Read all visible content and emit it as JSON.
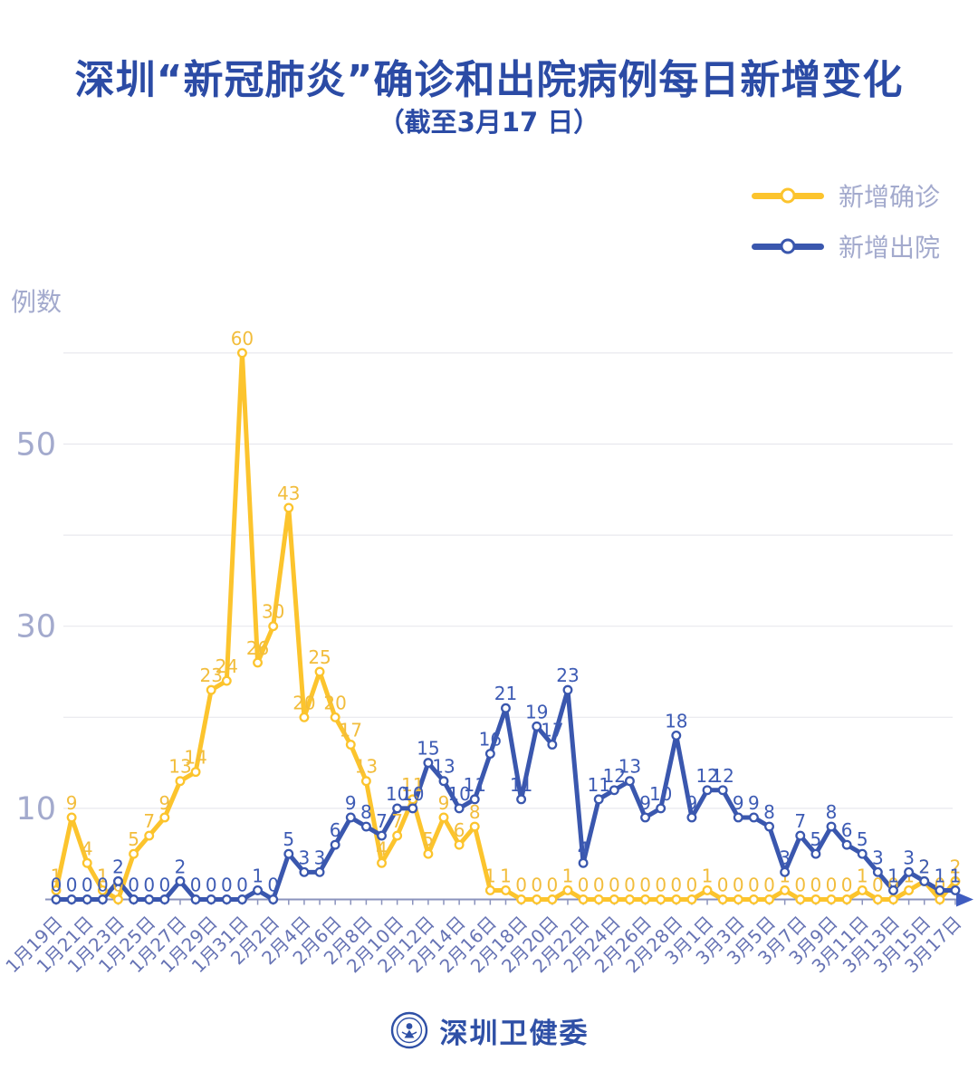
{
  "title": "深圳“新冠肺炎”确诊和出院病例每日新增变化",
  "subtitle": "（截至3月17 日）",
  "y_axis_title": "例数",
  "legend": {
    "items": [
      {
        "label": "新增确诊",
        "color": "#fcc42d"
      },
      {
        "label": "新增出院",
        "color": "#3a57ae"
      }
    ]
  },
  "footer": {
    "brand": "深圳卫健委"
  },
  "colors": {
    "title": "#2b4ba5",
    "legend_text": "#a3aacd",
    "axis_text": "#a3aacd",
    "x_label": "#6673b4",
    "axis_line": "#8b93bd",
    "arrow": "#3f5cc0",
    "gridline": "#e8e8ee",
    "background": "#ffffff"
  },
  "chart_data": {
    "type": "line",
    "title": "深圳“新冠肺炎”确诊和出院病例每日新增变化（截至3月17日）",
    "xlabel": "",
    "ylabel": "例数",
    "y_ticks": [
      10,
      30,
      50
    ],
    "gridlines": [
      10,
      20,
      30,
      40,
      50,
      60
    ],
    "ylim": [
      0,
      62
    ],
    "grid": true,
    "legend_position": "top-right",
    "x_label_every": 2,
    "categories": [
      "1月19日",
      "1月20日",
      "1月21日",
      "1月22日",
      "1月23日",
      "1月24日",
      "1月25日",
      "1月26日",
      "1月27日",
      "1月28日",
      "1月29日",
      "1月30日",
      "1月31日",
      "2月1日",
      "2月2日",
      "2月3日",
      "2月4日",
      "2月5日",
      "2月6日",
      "2月7日",
      "2月8日",
      "2月9日",
      "2月10日",
      "2月11日",
      "2月12日",
      "2月13日",
      "2月14日",
      "2月15日",
      "2月16日",
      "2月17日",
      "2月18日",
      "2月19日",
      "2月20日",
      "2月21日",
      "2月22日",
      "2月23日",
      "2月24日",
      "2月25日",
      "2月26日",
      "2月27日",
      "2月28日",
      "2月29日",
      "3月1日",
      "3月2日",
      "3月3日",
      "3月4日",
      "3月5日",
      "3月6日",
      "3月7日",
      "3月8日",
      "3月9日",
      "3月10日",
      "3月11日",
      "3月12日",
      "3月13日",
      "3月14日",
      "3月15日",
      "3月16日",
      "3月17日"
    ],
    "series": [
      {
        "name": "新增确诊",
        "color": "#fcc42d",
        "label_color": "#f2bd3c",
        "values": [
          1,
          9,
          4,
          1,
          0,
          5,
          7,
          9,
          13,
          14,
          23,
          24,
          60,
          26,
          30,
          43,
          20,
          25,
          20,
          17,
          13,
          4,
          7,
          11,
          5,
          9,
          6,
          8,
          1,
          1,
          0,
          0,
          0,
          1,
          0,
          0,
          0,
          0,
          0,
          0,
          0,
          0,
          1,
          0,
          0,
          0,
          0,
          1,
          0,
          0,
          0,
          0,
          1,
          0,
          0,
          1,
          2,
          0,
          2
        ]
      },
      {
        "name": "新增出院",
        "color": "#3a57ae",
        "label_color": "#3d5bb4",
        "values": [
          0,
          0,
          0,
          0,
          2,
          0,
          0,
          0,
          2,
          0,
          0,
          0,
          0,
          1,
          0,
          5,
          3,
          3,
          6,
          9,
          8,
          7,
          10,
          10,
          15,
          13,
          10,
          11,
          16,
          21,
          11,
          19,
          17,
          23,
          4,
          11,
          12,
          13,
          9,
          10,
          18,
          9,
          12,
          12,
          9,
          9,
          8,
          3,
          7,
          5,
          8,
          6,
          5,
          3,
          1,
          3,
          2,
          1,
          1
        ]
      }
    ]
  }
}
